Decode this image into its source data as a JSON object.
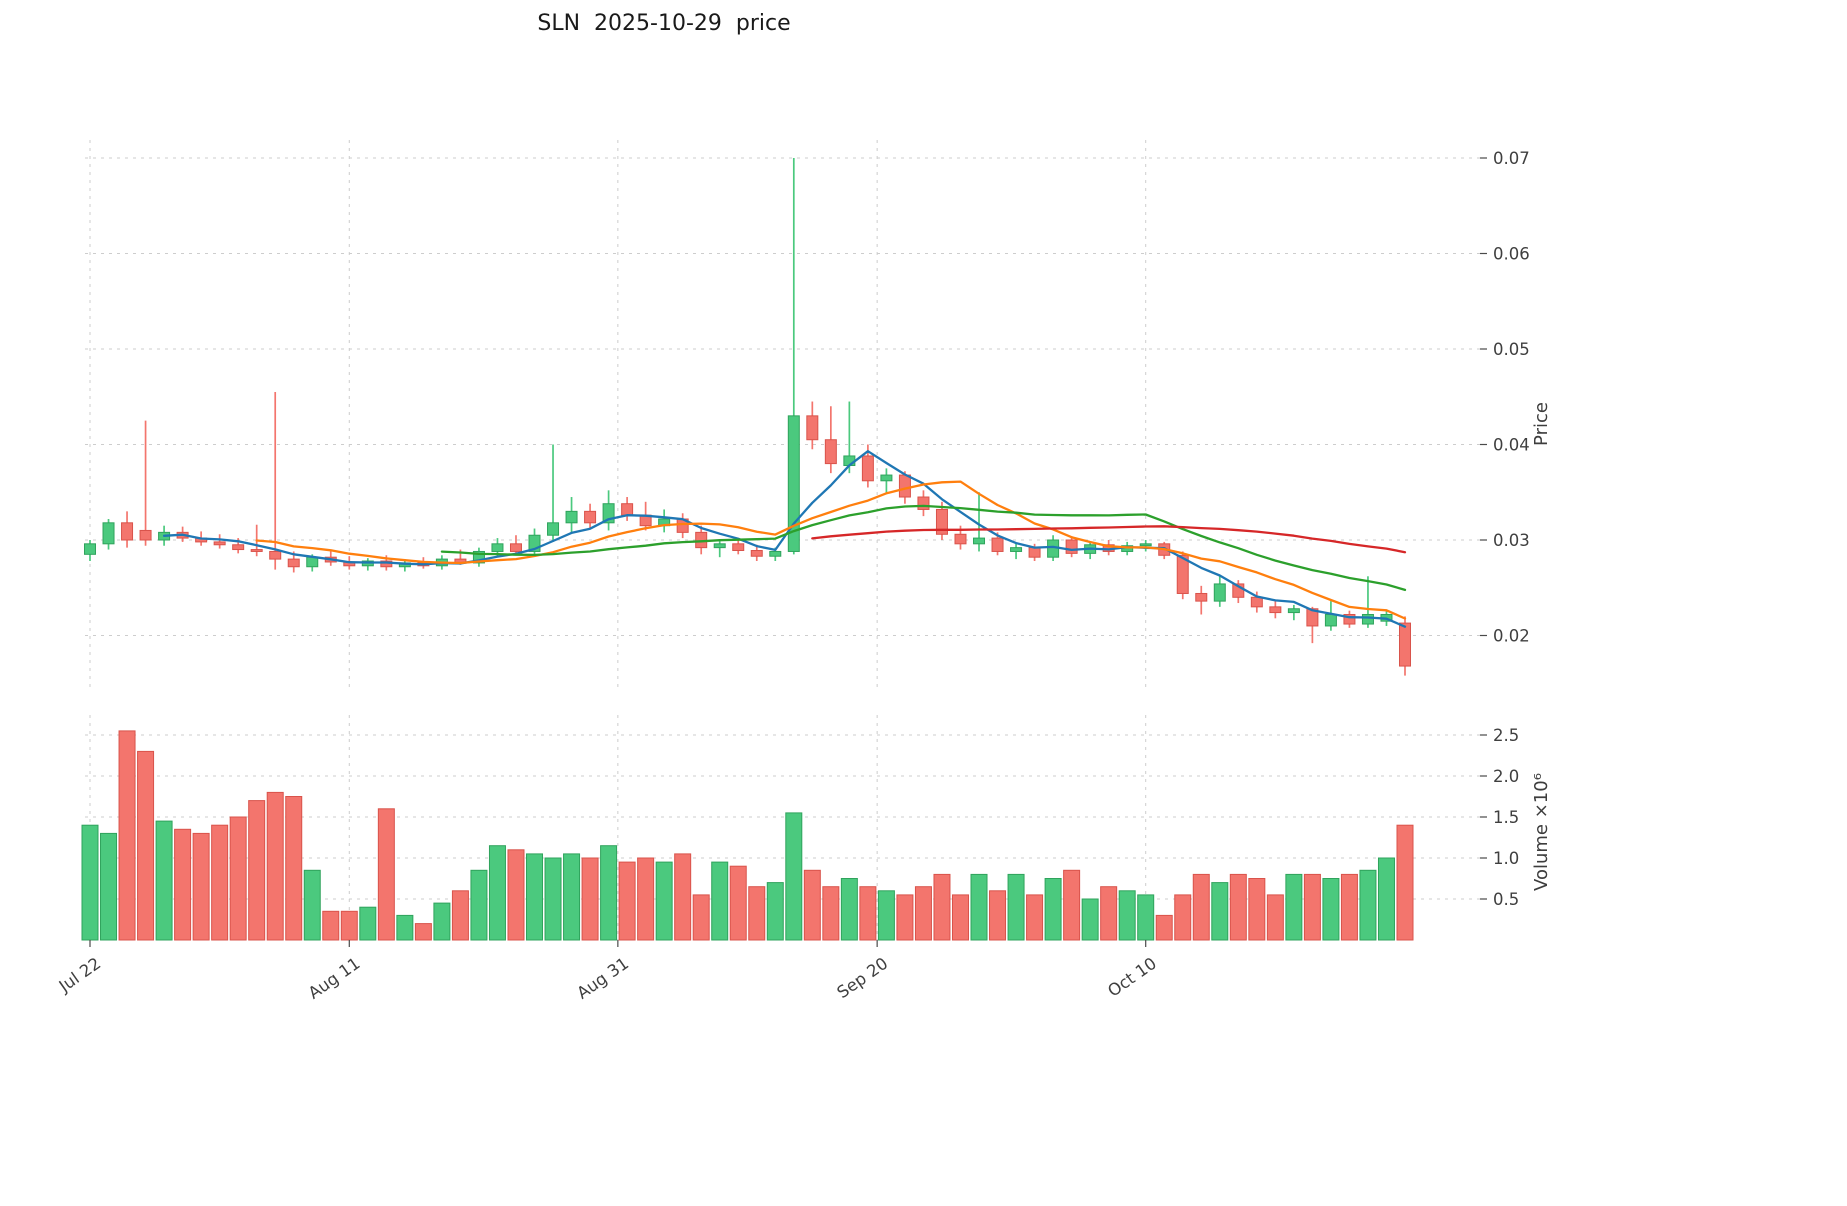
{
  "title": "SLN  2025-10-29  price",
  "chart_data": {
    "type": "candlestick",
    "title": "SLN  2025-10-29  price",
    "panels": [
      "price_candles_with_moving_averages",
      "volume_bars"
    ],
    "grid": true,
    "price_axis": {
      "label": "Price",
      "side": "right",
      "tick_values": [
        0.02,
        0.03,
        0.04,
        0.05,
        0.06,
        0.07
      ],
      "tick_labels": [
        "0.02",
        "0.03",
        "0.04",
        "0.05",
        "0.06",
        "0.07"
      ],
      "range": [
        0.0145,
        0.0725
      ]
    },
    "volume_axis": {
      "label": "Volume  ×10⁶",
      "side": "right",
      "unit": 1000000,
      "tick_values": [
        0.5,
        1.0,
        1.5,
        2.0,
        2.5
      ],
      "tick_labels": [
        "0.5",
        "1.0",
        "1.5",
        "2.0",
        "2.5"
      ],
      "range": [
        0,
        2.74
      ]
    },
    "x_ticks": [
      {
        "label": "Jul 22",
        "index": 0
      },
      {
        "label": "Aug 11",
        "index": 14
      },
      {
        "label": "Aug 31",
        "index": 28.5
      },
      {
        "label": "Sep 20",
        "index": 42.5
      },
      {
        "label": "Oct 10",
        "index": 57
      }
    ],
    "colors": {
      "up_fill": "#4bc97e",
      "up_edge": "#2fa35c",
      "down_fill": "#f3756d",
      "down_edge": "#d9534b",
      "grid": "#cdcdcd",
      "background": "#ffffff"
    },
    "moving_averages": [
      {
        "label": "MA5",
        "window": 5,
        "color": "#1f77b4"
      },
      {
        "label": "MA10",
        "window": 10,
        "color": "#ff7f0e"
      },
      {
        "label": "MA20",
        "window": 20,
        "color": "#2ca02c"
      },
      {
        "label": "MA40",
        "window": 40,
        "color": "#d62728"
      }
    ],
    "series": {
      "dates": [
        "2025-07-22",
        "2025-07-23",
        "2025-07-24",
        "2025-07-25",
        "2025-07-28",
        "2025-07-29",
        "2025-07-30",
        "2025-07-31",
        "2025-08-01",
        "2025-08-04",
        "2025-08-05",
        "2025-08-06",
        "2025-08-07",
        "2025-08-08",
        "2025-08-11",
        "2025-08-12",
        "2025-08-13",
        "2025-08-14",
        "2025-08-15",
        "2025-08-18",
        "2025-08-19",
        "2025-08-20",
        "2025-08-21",
        "2025-08-22",
        "2025-08-25",
        "2025-08-26",
        "2025-08-27",
        "2025-08-28",
        "2025-08-29",
        "2025-09-01",
        "2025-09-02",
        "2025-09-03",
        "2025-09-04",
        "2025-09-05",
        "2025-09-08",
        "2025-09-09",
        "2025-09-10",
        "2025-09-11",
        "2025-09-12",
        "2025-09-15",
        "2025-09-16",
        "2025-09-17",
        "2025-09-18",
        "2025-09-19",
        "2025-09-22",
        "2025-09-23",
        "2025-09-24",
        "2025-09-25",
        "2025-09-26",
        "2025-09-29",
        "2025-09-30",
        "2025-10-01",
        "2025-10-02",
        "2025-10-03",
        "2025-10-06",
        "2025-10-07",
        "2025-10-08",
        "2025-10-09",
        "2025-10-10",
        "2025-10-13",
        "2025-10-14",
        "2025-10-15",
        "2025-10-16",
        "2025-10-17",
        "2025-10-20",
        "2025-10-21",
        "2025-10-22",
        "2025-10-23",
        "2025-10-24",
        "2025-10-27",
        "2025-10-28",
        "2025-10-29"
      ],
      "open": [
        0.0285,
        0.0296,
        0.0318,
        0.031,
        0.03,
        0.0308,
        0.0302,
        0.0298,
        0.0295,
        0.029,
        0.0288,
        0.028,
        0.0272,
        0.0282,
        0.0277,
        0.0273,
        0.0278,
        0.0272,
        0.0276,
        0.0273,
        0.028,
        0.0276,
        0.0288,
        0.0296,
        0.0288,
        0.0305,
        0.0318,
        0.033,
        0.0318,
        0.0338,
        0.0326,
        0.0315,
        0.0322,
        0.0308,
        0.0292,
        0.0296,
        0.0289,
        0.0283,
        0.0288,
        0.043,
        0.0405,
        0.0378,
        0.0388,
        0.0362,
        0.0368,
        0.0345,
        0.0332,
        0.0306,
        0.0296,
        0.0302,
        0.0288,
        0.0292,
        0.0282,
        0.03,
        0.0286,
        0.0295,
        0.0288,
        0.0294,
        0.0296,
        0.0284,
        0.0244,
        0.0236,
        0.0254,
        0.024,
        0.023,
        0.0224,
        0.0228,
        0.021,
        0.0222,
        0.0212,
        0.0215,
        0.0213
      ],
      "high": [
        0.03,
        0.0322,
        0.033,
        0.0425,
        0.0315,
        0.0314,
        0.0309,
        0.0306,
        0.0302,
        0.0316,
        0.0455,
        0.0288,
        0.0285,
        0.0289,
        0.0283,
        0.0281,
        0.0284,
        0.028,
        0.0282,
        0.0284,
        0.029,
        0.0292,
        0.0302,
        0.0305,
        0.0312,
        0.04,
        0.0345,
        0.0338,
        0.0352,
        0.0345,
        0.034,
        0.0332,
        0.0328,
        0.0315,
        0.03,
        0.0302,
        0.0295,
        0.0292,
        0.07,
        0.0445,
        0.044,
        0.0445,
        0.04,
        0.0375,
        0.0372,
        0.0352,
        0.034,
        0.0315,
        0.035,
        0.0308,
        0.0296,
        0.0296,
        0.0305,
        0.0304,
        0.0298,
        0.03,
        0.0298,
        0.03,
        0.0298,
        0.0288,
        0.0252,
        0.0262,
        0.0258,
        0.0246,
        0.0236,
        0.0232,
        0.023,
        0.0236,
        0.0226,
        0.0262,
        0.0226,
        0.022
      ],
      "low": [
        0.0278,
        0.029,
        0.0292,
        0.0294,
        0.0294,
        0.0298,
        0.0294,
        0.0291,
        0.0286,
        0.0283,
        0.0269,
        0.0266,
        0.0267,
        0.0273,
        0.0269,
        0.0268,
        0.0268,
        0.0267,
        0.027,
        0.0269,
        0.0274,
        0.0272,
        0.0282,
        0.0284,
        0.0284,
        0.0298,
        0.0308,
        0.0312,
        0.031,
        0.032,
        0.031,
        0.0308,
        0.0302,
        0.0285,
        0.0282,
        0.0285,
        0.0278,
        0.0278,
        0.0285,
        0.0395,
        0.037,
        0.037,
        0.0355,
        0.0348,
        0.0338,
        0.0325,
        0.03,
        0.029,
        0.0288,
        0.0284,
        0.028,
        0.0278,
        0.0278,
        0.0282,
        0.028,
        0.0284,
        0.0284,
        0.0288,
        0.028,
        0.0238,
        0.0222,
        0.023,
        0.0234,
        0.0224,
        0.0218,
        0.0216,
        0.0192,
        0.0205,
        0.0208,
        0.0208,
        0.021,
        0.0158
      ],
      "close": [
        0.0296,
        0.0318,
        0.03,
        0.03,
        0.0308,
        0.0302,
        0.0298,
        0.0295,
        0.029,
        0.0288,
        0.028,
        0.0272,
        0.0282,
        0.0277,
        0.0273,
        0.0278,
        0.0272,
        0.0276,
        0.0273,
        0.028,
        0.0276,
        0.0288,
        0.0296,
        0.0288,
        0.0305,
        0.0318,
        0.033,
        0.0318,
        0.0338,
        0.0326,
        0.0315,
        0.0322,
        0.0308,
        0.0292,
        0.0296,
        0.0289,
        0.0283,
        0.0288,
        0.043,
        0.0405,
        0.038,
        0.0388,
        0.0362,
        0.0368,
        0.0345,
        0.0332,
        0.0306,
        0.0296,
        0.0302,
        0.0288,
        0.0292,
        0.0282,
        0.03,
        0.0286,
        0.0295,
        0.0288,
        0.0294,
        0.0296,
        0.0284,
        0.0244,
        0.0236,
        0.0254,
        0.024,
        0.023,
        0.0224,
        0.0228,
        0.021,
        0.0222,
        0.0212,
        0.0222,
        0.0222,
        0.0168
      ],
      "volume_millions": [
        1.4,
        1.3,
        2.55,
        2.3,
        1.45,
        1.35,
        1.3,
        1.4,
        1.5,
        1.7,
        1.8,
        1.75,
        0.85,
        0.35,
        0.35,
        0.4,
        1.6,
        0.3,
        0.2,
        0.45,
        0.6,
        0.85,
        1.15,
        1.1,
        1.05,
        1.0,
        1.05,
        1.0,
        1.15,
        0.95,
        1.0,
        0.95,
        1.05,
        0.55,
        0.95,
        0.9,
        0.65,
        0.7,
        1.55,
        0.85,
        0.65,
        0.75,
        0.65,
        0.6,
        0.55,
        0.65,
        0.8,
        0.55,
        0.8,
        0.6,
        0.8,
        0.55,
        0.75,
        0.85,
        0.5,
        0.65,
        0.6,
        0.55,
        0.3,
        0.55,
        0.8,
        0.7,
        0.8,
        0.75,
        0.55,
        0.8,
        0.8,
        0.75,
        0.8,
        0.85,
        1.0,
        1.4
      ]
    }
  }
}
